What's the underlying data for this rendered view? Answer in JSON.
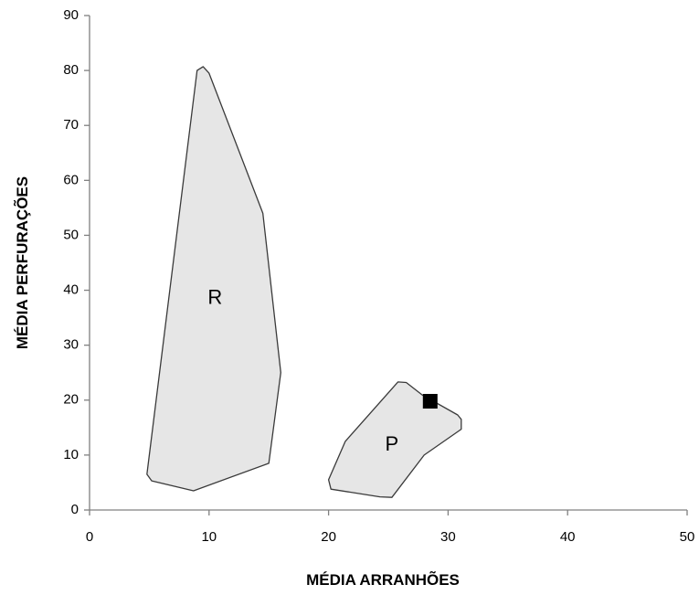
{
  "chart_data": {
    "type": "scatter",
    "title": "",
    "xlabel": "MÉDIA ARRANHÕES",
    "ylabel": "MÉDIA PERFURAÇÕES",
    "xlim": [
      0,
      50
    ],
    "ylim": [
      0,
      90
    ],
    "x_ticks": [
      0,
      10,
      20,
      30,
      40,
      50
    ],
    "y_ticks": [
      0,
      10,
      20,
      30,
      40,
      50,
      60,
      70,
      80,
      90
    ],
    "grid": false,
    "legend": "none",
    "colors": {
      "region_fill": "#e6e6e6",
      "region_stroke": "#3a3a3a",
      "axis": "#808080",
      "marker": "#000000"
    },
    "regions": [
      {
        "label": "R",
        "label_at": [
          10.5,
          38.5
        ],
        "points": [
          [
            9.0,
            80.0
          ],
          [
            9.5,
            80.7
          ],
          [
            10.0,
            79.5
          ],
          [
            14.5,
            54.0
          ],
          [
            16.0,
            25.0
          ],
          [
            15.0,
            8.5
          ],
          [
            8.7,
            3.5
          ],
          [
            5.2,
            5.3
          ],
          [
            4.8,
            6.5
          ],
          [
            9.0,
            80.0
          ]
        ]
      },
      {
        "label": "P",
        "label_at": [
          25.3,
          11.8
        ],
        "points": [
          [
            25.8,
            23.3
          ],
          [
            26.5,
            23.2
          ],
          [
            27.8,
            21.0
          ],
          [
            30.8,
            17.3
          ],
          [
            31.1,
            16.5
          ],
          [
            31.1,
            14.7
          ],
          [
            28.0,
            10.0
          ],
          [
            25.3,
            2.3
          ],
          [
            24.3,
            2.4
          ],
          [
            20.2,
            3.8
          ],
          [
            20.0,
            5.5
          ],
          [
            21.4,
            12.5
          ],
          [
            25.8,
            23.3
          ]
        ]
      }
    ],
    "points": [
      {
        "x": 28.5,
        "y": 19.8,
        "marker": "square"
      }
    ]
  }
}
